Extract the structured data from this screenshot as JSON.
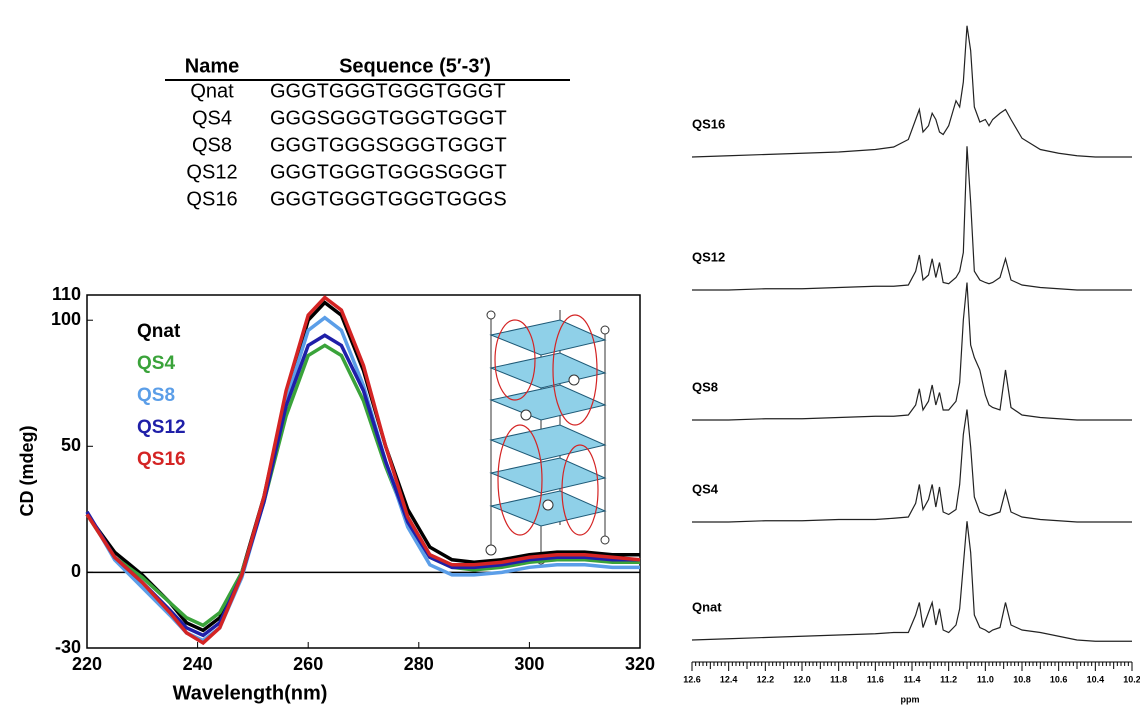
{
  "table": {
    "header": [
      "Name",
      "Sequence (5′-3′)"
    ],
    "rows": [
      [
        "Qnat",
        "GGGTGGGTGGGTGGGT"
      ],
      [
        "QS4",
        "GGGSGGGTGGGTGGGT"
      ],
      [
        "QS8",
        "GGGTGGGSGGGTGGGT"
      ],
      [
        "QS12",
        "GGGTGGGTGGGSGGGT"
      ],
      [
        "QS16",
        "GGGTGGGTGGGTGGGS"
      ]
    ]
  },
  "chart_data": [
    {
      "type": "line",
      "x_label": "Wavelength(nm)",
      "y_label": "CD (mdeg)",
      "x": [
        220,
        225,
        230,
        235,
        238,
        241,
        244,
        248,
        252,
        256,
        260,
        263,
        266,
        270,
        274,
        278,
        282,
        286,
        290,
        295,
        300,
        305,
        310,
        315,
        320
      ],
      "series": [
        {
          "name": "Qnat",
          "color": "#000000",
          "values": [
            23,
            8,
            -1,
            -12,
            -20,
            -23,
            -18,
            0,
            30,
            70,
            100,
            107,
            102,
            80,
            50,
            25,
            10,
            5,
            4,
            5,
            7,
            8,
            8,
            7,
            7
          ]
        },
        {
          "name": "QS4",
          "color": "#3aa33a",
          "values": [
            23,
            6,
            -2,
            -12,
            -18,
            -21,
            -16,
            0,
            28,
            62,
            86,
            90,
            86,
            68,
            42,
            20,
            6,
            2,
            1,
            2,
            4,
            5,
            5,
            4,
            4
          ]
        },
        {
          "name": "QS8",
          "color": "#5b9ee8",
          "values": [
            24,
            5,
            -6,
            -17,
            -24,
            -27,
            -22,
            -2,
            28,
            68,
            96,
            101,
            96,
            74,
            44,
            18,
            3,
            -1,
            -1,
            0,
            2,
            3,
            3,
            2,
            2
          ]
        },
        {
          "name": "QS12",
          "color": "#1f1fa8",
          "values": [
            24,
            6,
            -4,
            -15,
            -22,
            -25,
            -20,
            -1,
            28,
            66,
            90,
            94,
            90,
            72,
            44,
            20,
            6,
            2,
            2,
            3,
            5,
            6,
            6,
            5,
            5
          ]
        },
        {
          "name": "QS16",
          "color": "#d42424",
          "values": [
            23,
            6,
            -4,
            -16,
            -24,
            -28,
            -22,
            -1,
            30,
            72,
            102,
            109,
            104,
            82,
            50,
            22,
            7,
            3,
            3,
            4,
            6,
            7,
            7,
            6,
            5
          ]
        }
      ],
      "xlim": [
        220,
        320
      ],
      "xticks": [
        220,
        240,
        260,
        280,
        300,
        320
      ],
      "ylim": [
        -30,
        110
      ],
      "yticks": [
        -30,
        0,
        50,
        100,
        110
      ]
    },
    {
      "type": "stacked-spectra",
      "x_label": "ppm",
      "x": [
        12.6,
        12.4,
        12.2,
        12.0,
        11.8,
        11.6,
        11.5,
        11.42,
        11.38,
        11.36,
        11.34,
        11.31,
        11.29,
        11.27,
        11.25,
        11.23,
        11.2,
        11.16,
        11.14,
        11.12,
        11.1,
        11.08,
        11.06,
        11.03,
        11.0,
        10.98,
        10.96,
        10.92,
        10.89,
        10.86,
        10.8,
        10.7,
        10.6,
        10.5,
        10.4,
        10.2
      ],
      "series": [
        {
          "name": "QS16",
          "color": "#222222",
          "values": [
            0,
            1,
            2,
            3,
            4,
            6,
            8,
            14,
            30,
            38,
            20,
            25,
            35,
            30,
            20,
            18,
            25,
            45,
            40,
            60,
            105,
            85,
            40,
            28,
            30,
            25,
            30,
            35,
            38,
            30,
            15,
            6,
            3,
            1,
            0,
            0
          ]
        },
        {
          "name": "QS12",
          "color": "#222222",
          "values": [
            0,
            0,
            1,
            1,
            2,
            3,
            3,
            4,
            15,
            28,
            8,
            12,
            25,
            10,
            22,
            6,
            5,
            10,
            15,
            30,
            115,
            70,
            15,
            8,
            6,
            5,
            6,
            10,
            25,
            8,
            4,
            2,
            1,
            0,
            0,
            0
          ]
        },
        {
          "name": "QS8",
          "color": "#222222",
          "values": [
            0,
            0,
            1,
            1,
            2,
            3,
            3,
            4,
            12,
            25,
            8,
            15,
            28,
            12,
            22,
            8,
            8,
            15,
            30,
            80,
            110,
            60,
            50,
            40,
            20,
            12,
            10,
            8,
            40,
            10,
            4,
            2,
            1,
            0,
            0,
            0
          ]
        },
        {
          "name": "QS4",
          "color": "#222222",
          "values": [
            0,
            0,
            1,
            1,
            2,
            2,
            3,
            4,
            15,
            30,
            10,
            18,
            30,
            12,
            28,
            8,
            6,
            10,
            30,
            70,
            90,
            60,
            20,
            8,
            6,
            5,
            6,
            8,
            25,
            8,
            4,
            2,
            1,
            0,
            0,
            0
          ]
        },
        {
          "name": "Qnat",
          "color": "#222222",
          "values": [
            0,
            1,
            2,
            3,
            4,
            5,
            6,
            6,
            20,
            30,
            10,
            22,
            30,
            12,
            25,
            8,
            6,
            12,
            25,
            60,
            95,
            70,
            20,
            10,
            8,
            6,
            8,
            10,
            30,
            12,
            8,
            6,
            3,
            0,
            -1,
            -1
          ]
        }
      ],
      "xlim": [
        12.6,
        10.2
      ],
      "xticks": [
        12.6,
        12.4,
        12.2,
        {
          "value": 12,
          "label": "12.0"
        },
        11.8,
        11.6,
        11.4,
        11.2,
        {
          "value": 11,
          "label": "11.0"
        },
        10.8,
        10.6,
        10.4,
        10.2
      ]
    }
  ]
}
